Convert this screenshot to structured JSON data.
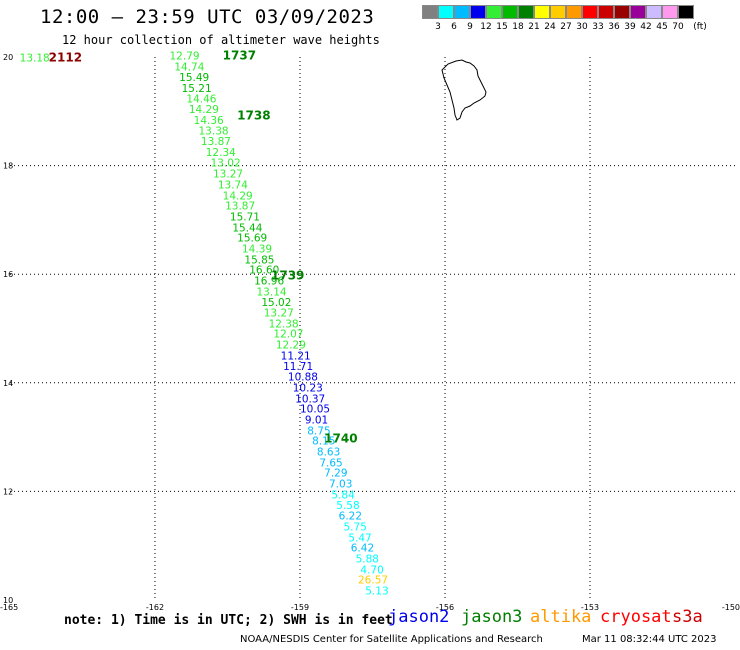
{
  "header": {
    "title": "12:00 – 23:59 UTC 03/09/2023",
    "subtitle": "12 hour collection of altimeter wave heights"
  },
  "colorbar": {
    "colors": [
      "#808080",
      "#00ffff",
      "#00bbff",
      "#0000ee",
      "#33ee33",
      "#00bb00",
      "#008000",
      "#ffff00",
      "#ffcc00",
      "#ff9900",
      "#ff0000",
      "#cc0000",
      "#990000",
      "#990099",
      "#ccbbff",
      "#ff99ee",
      "#000000"
    ],
    "labels": [
      "3",
      "6",
      "9",
      "12",
      "15",
      "18",
      "21",
      "24",
      "27",
      "30",
      "33",
      "36",
      "39",
      "42",
      "45",
      "70",
      "(ft)"
    ]
  },
  "chart_data": {
    "type": "scatter",
    "title": "12:00 – 23:59 UTC 03/09/2023",
    "subtitle": "12 hour collection of altimeter wave heights",
    "xlabel": "",
    "ylabel": "",
    "x_ticks": [
      "-165",
      "-162",
      "-159",
      "-156",
      "-153",
      "-150"
    ],
    "y_ticks": [
      "10",
      "12",
      "14",
      "16",
      "18",
      "20"
    ],
    "xlim": [
      -165,
      -150
    ],
    "ylim": [
      10,
      20
    ],
    "grid": true,
    "units": "ft",
    "time_labels": [
      {
        "label": "2112",
        "lon": -164.2,
        "lat": 19.92,
        "color": "#8b0000"
      },
      {
        "label": "1737",
        "lon": -160.6,
        "lat": 19.95,
        "color": "#008000"
      },
      {
        "label": "1738",
        "lon": -160.3,
        "lat": 18.85,
        "color": "#008000"
      },
      {
        "label": "1739",
        "lon": -159.6,
        "lat": 15.9,
        "color": "#008000"
      },
      {
        "label": "1740",
        "lon": -158.5,
        "lat": 12.9,
        "color": "#008000"
      }
    ],
    "series": [
      {
        "name": "jason3",
        "points": [
          {
            "lon": -164.8,
            "lat": 19.92,
            "swh": "13.18",
            "color": "#33ee33"
          },
          {
            "lon": -161.7,
            "lat": 19.95,
            "swh": "12.79",
            "color": "#33ee33"
          },
          {
            "lon": -161.6,
            "lat": 19.75,
            "swh": "14.74",
            "color": "#33ee33"
          },
          {
            "lon": -161.5,
            "lat": 19.56,
            "swh": "15.49",
            "color": "#00bb00"
          },
          {
            "lon": -161.45,
            "lat": 19.36,
            "swh": "15.21",
            "color": "#00bb00"
          },
          {
            "lon": -161.35,
            "lat": 19.16,
            "swh": "14.46",
            "color": "#33ee33"
          },
          {
            "lon": -161.3,
            "lat": 18.97,
            "swh": "14.29",
            "color": "#33ee33"
          },
          {
            "lon": -161.2,
            "lat": 18.77,
            "swh": "14.36",
            "color": "#33ee33"
          },
          {
            "lon": -161.1,
            "lat": 18.57,
            "swh": "13.38",
            "color": "#33ee33"
          },
          {
            "lon": -161.05,
            "lat": 18.38,
            "swh": "13.87",
            "color": "#33ee33"
          },
          {
            "lon": -160.95,
            "lat": 18.18,
            "swh": "12.34",
            "color": "#33ee33"
          },
          {
            "lon": -160.85,
            "lat": 17.98,
            "swh": "13.02",
            "color": "#33ee33"
          },
          {
            "lon": -160.8,
            "lat": 17.78,
            "swh": "13.27",
            "color": "#33ee33"
          },
          {
            "lon": -160.7,
            "lat": 17.58,
            "swh": "13.74",
            "color": "#33ee33"
          },
          {
            "lon": -160.6,
            "lat": 17.38,
            "swh": "14.29",
            "color": "#33ee33"
          },
          {
            "lon": -160.55,
            "lat": 17.19,
            "swh": "13.87",
            "color": "#33ee33"
          },
          {
            "lon": -160.45,
            "lat": 16.99,
            "swh": "15.71",
            "color": "#00bb00"
          },
          {
            "lon": -160.4,
            "lat": 16.79,
            "swh": "15.44",
            "color": "#00bb00"
          },
          {
            "lon": -160.3,
            "lat": 16.6,
            "swh": "15.69",
            "color": "#00bb00"
          },
          {
            "lon": -160.2,
            "lat": 16.4,
            "swh": "14.39",
            "color": "#33ee33"
          },
          {
            "lon": -160.15,
            "lat": 16.2,
            "swh": "15.85",
            "color": "#00bb00"
          },
          {
            "lon": -160.05,
            "lat": 16.01,
            "swh": "16.60",
            "color": "#00bb00"
          },
          {
            "lon": -159.95,
            "lat": 15.81,
            "swh": "16.96",
            "color": "#00bb00"
          },
          {
            "lon": -159.9,
            "lat": 15.61,
            "swh": "13.14",
            "color": "#33ee33"
          },
          {
            "lon": -159.8,
            "lat": 15.41,
            "swh": "15.02",
            "color": "#00bb00"
          },
          {
            "lon": -159.75,
            "lat": 15.22,
            "swh": "13.27",
            "color": "#33ee33"
          },
          {
            "lon": -159.65,
            "lat": 15.02,
            "swh": "12.38",
            "color": "#33ee33"
          },
          {
            "lon": -159.55,
            "lat": 14.83,
            "swh": "12.07",
            "color": "#33ee33"
          },
          {
            "lon": -159.5,
            "lat": 14.63,
            "swh": "12.29",
            "color": "#33ee33"
          },
          {
            "lon": -159.4,
            "lat": 14.43,
            "swh": "11.21",
            "color": "#0000ee"
          },
          {
            "lon": -159.35,
            "lat": 14.24,
            "swh": "11.71",
            "color": "#0000ee"
          },
          {
            "lon": -159.25,
            "lat": 14.04,
            "swh": "10.88",
            "color": "#0000ee"
          },
          {
            "lon": -159.15,
            "lat": 13.84,
            "swh": "10.23",
            "color": "#0000ee"
          },
          {
            "lon": -159.1,
            "lat": 13.64,
            "swh": "10.37",
            "color": "#0000ee"
          },
          {
            "lon": -159.0,
            "lat": 13.45,
            "swh": "10.05",
            "color": "#0000ee"
          },
          {
            "lon": -158.9,
            "lat": 13.25,
            "swh": "9.01",
            "color": "#0000ee"
          },
          {
            "lon": -158.85,
            "lat": 13.05,
            "swh": "8.75",
            "color": "#00bbff"
          },
          {
            "lon": -158.75,
            "lat": 12.86,
            "swh": "8.15",
            "color": "#00bbff"
          },
          {
            "lon": -158.65,
            "lat": 12.66,
            "swh": "8.63",
            "color": "#00bbff"
          },
          {
            "lon": -158.6,
            "lat": 12.46,
            "swh": "7.65",
            "color": "#00bbff"
          },
          {
            "lon": -158.5,
            "lat": 12.27,
            "swh": "7.29",
            "color": "#00bbff"
          },
          {
            "lon": -158.4,
            "lat": 12.07,
            "swh": "7.03",
            "color": "#00bbff"
          },
          {
            "lon": -158.35,
            "lat": 11.87,
            "swh": "5.84",
            "color": "#00ffff"
          },
          {
            "lon": -158.25,
            "lat": 11.68,
            "swh": "5.58",
            "color": "#00ffff"
          },
          {
            "lon": -158.2,
            "lat": 11.48,
            "swh": "6.22",
            "color": "#00bbff"
          },
          {
            "lon": -158.1,
            "lat": 11.28,
            "swh": "5.75",
            "color": "#00ffff"
          },
          {
            "lon": -158.0,
            "lat": 11.08,
            "swh": "5.47",
            "color": "#00ffff"
          },
          {
            "lon": -157.95,
            "lat": 10.89,
            "swh": "6.42",
            "color": "#00bbff"
          },
          {
            "lon": -157.85,
            "lat": 10.69,
            "swh": "5.88",
            "color": "#00ffff"
          },
          {
            "lon": -157.75,
            "lat": 10.49,
            "swh": "4.70",
            "color": "#00ffff"
          },
          {
            "lon": -157.8,
            "lat": 10.3,
            "swh": "26.57",
            "color": "#ffcc00"
          },
          {
            "lon": -157.65,
            "lat": 10.1,
            "swh": "5.13",
            "color": "#00ffff"
          }
        ]
      }
    ]
  },
  "footer": {
    "note": "note: 1) Time is in UTC; 2) SWH is in feet",
    "satellites": [
      {
        "name": "jason2",
        "color": "#0000ee"
      },
      {
        "name": "jason3",
        "color": "#008000"
      },
      {
        "name": "altika",
        "color": "#ff9900"
      },
      {
        "name": "cryosat",
        "color": "#ff0000"
      },
      {
        "name": "s3a",
        "color": "#cc0000"
      }
    ],
    "credit": "NOAA/NESDIS Center for Satellite Applications and Research",
    "timestamp": "Mar 11 08:32:44 UTC 2023"
  }
}
